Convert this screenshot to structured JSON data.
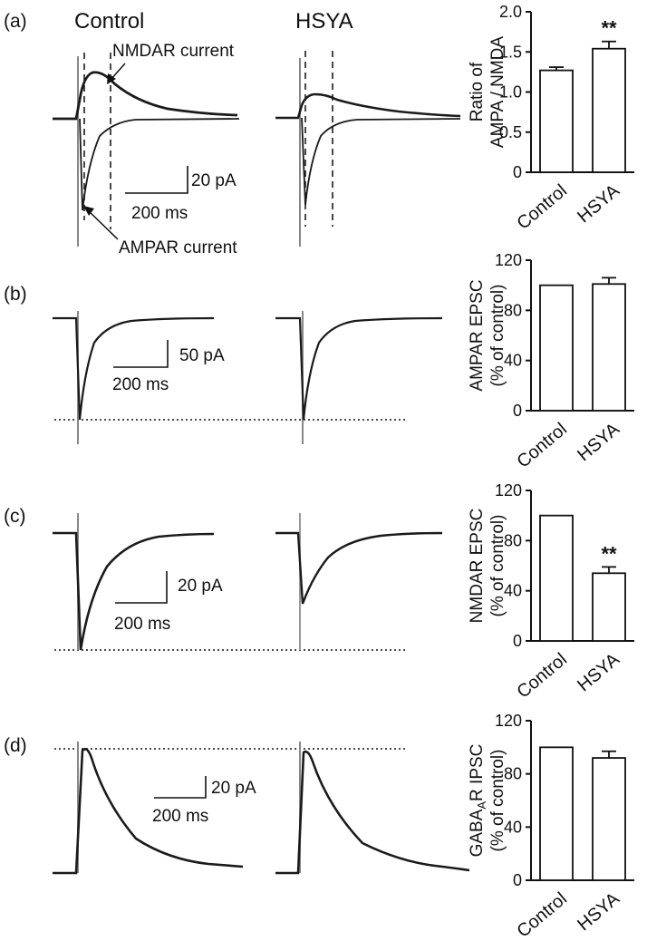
{
  "panels": [
    {
      "label": "(a)",
      "traces": {
        "group_labels": [
          "Control",
          "HSYA"
        ],
        "annotations": [
          "NMDAR current",
          "AMPAR current"
        ],
        "scale_bar": {
          "vertical": "20 pA",
          "horizontal": "200 ms"
        }
      }
    },
    {
      "label": "(b)",
      "traces": {
        "group_labels": [],
        "annotations": [],
        "scale_bar": {
          "vertical": "50 pA",
          "horizontal": "200 ms"
        }
      }
    },
    {
      "label": "(c)",
      "traces": {
        "group_labels": [],
        "annotations": [],
        "scale_bar": {
          "vertical": "20 pA",
          "horizontal": "200 ms"
        }
      }
    },
    {
      "label": "(d)",
      "traces": {
        "group_labels": [],
        "annotations": [],
        "scale_bar": {
          "vertical": "20 pA",
          "horizontal": "200 ms"
        }
      }
    }
  ],
  "chart_data": [
    {
      "type": "bar",
      "panel": "(a)",
      "categories": [
        "Control",
        "HSYA"
      ],
      "values": [
        1.27,
        1.54
      ],
      "errors": [
        0.04,
        0.09
      ],
      "significance": [
        "",
        "**"
      ],
      "ylabel_lines": [
        "Ratio of",
        "AMPA / NMDA"
      ],
      "ylim": [
        0,
        2.0
      ],
      "yticks": [
        "0",
        "0.5",
        "1.0",
        "1.5",
        "2.0"
      ],
      "ytick_values": [
        0,
        0.5,
        1.0,
        1.5,
        2.0
      ]
    },
    {
      "type": "bar",
      "panel": "(b)",
      "categories": [
        "Control",
        "HSYA"
      ],
      "values": [
        100,
        101
      ],
      "errors": [
        0,
        5
      ],
      "significance": [
        "",
        ""
      ],
      "ylabel_lines": [
        "AMPAR EPSC",
        "(% of control)"
      ],
      "ylim": [
        0,
        120
      ],
      "yticks": [
        "0",
        "40",
        "80",
        "120"
      ],
      "ytick_values": [
        0,
        40,
        80,
        120
      ]
    },
    {
      "type": "bar",
      "panel": "(c)",
      "categories": [
        "Control",
        "HSYA"
      ],
      "values": [
        100,
        54
      ],
      "errors": [
        0,
        5
      ],
      "significance": [
        "",
        "**"
      ],
      "ylabel_lines": [
        "NMDAR EPSC",
        "(% of control)"
      ],
      "ylim": [
        0,
        120
      ],
      "yticks": [
        "0",
        "40",
        "80",
        "120"
      ],
      "ytick_values": [
        0,
        40,
        80,
        120
      ]
    },
    {
      "type": "bar",
      "panel": "(d)",
      "categories": [
        "Control",
        "HSYA"
      ],
      "values": [
        100,
        92
      ],
      "errors": [
        0,
        5
      ],
      "significance": [
        "",
        ""
      ],
      "ylabel_lines": [
        "GABA_A R IPSC",
        "(% of control)"
      ],
      "ylim": [
        0,
        120
      ],
      "yticks": [
        "0",
        "40",
        "80",
        "120"
      ],
      "ytick_values": [
        0,
        40,
        80,
        120
      ]
    }
  ]
}
